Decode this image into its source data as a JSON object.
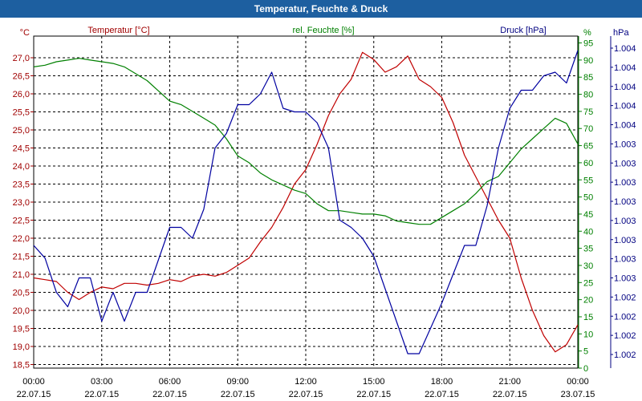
{
  "title": "Temperatur, Feuchte & Druck",
  "chart_data": {
    "type": "line",
    "x_ticks": [
      {
        "time": "00:00",
        "date": "22.07.15"
      },
      {
        "time": "03:00",
        "date": "22.07.15"
      },
      {
        "time": "06:00",
        "date": "22.07.15"
      },
      {
        "time": "09:00",
        "date": "22.07.15"
      },
      {
        "time": "12:00",
        "date": "22.07.15"
      },
      {
        "time": "15:00",
        "date": "22.07.15"
      },
      {
        "time": "18:00",
        "date": "22.07.15"
      },
      {
        "time": "21:00",
        "date": "22.07.15"
      },
      {
        "time": "00:00",
        "date": "23.07.15"
      }
    ],
    "xlim_hours": [
      0,
      24
    ],
    "grid": true,
    "axes": {
      "temperature": {
        "label": "Temperatur [°C]",
        "unit": "°C",
        "color": "#a00000",
        "ylim": [
          18.4,
          27.6
        ],
        "ticks": [
          "27,0",
          "26,5",
          "26,0",
          "25,5",
          "25,0",
          "24,5",
          "24,0",
          "23,5",
          "23,0",
          "22,5",
          "22,0",
          "21,5",
          "21,0",
          "20,5",
          "20,0",
          "19,5",
          "19,0",
          "18,5"
        ]
      },
      "humidity": {
        "label": "rel. Feuchte [%]",
        "unit": "%",
        "color": "#008000",
        "ylim": [
          0,
          97
        ],
        "ticks": [
          "95",
          "90",
          "85",
          "80",
          "75",
          "70",
          "65",
          "60",
          "55",
          "50",
          "45",
          "40",
          "35",
          "30",
          "25",
          "20",
          "15",
          "10",
          "5",
          "0"
        ]
      },
      "pressure": {
        "label": "Druck [hPa]",
        "unit": "hPa",
        "color": "#000080",
        "ylim": [
          18.4,
          27.6
        ],
        "ticks": [
          "1.004",
          "1.004",
          "1.004",
          "1.004",
          "1.004",
          "1.003",
          "1.003",
          "1.003",
          "1.003",
          "1.003",
          "1.003",
          "1.003",
          "1.003",
          "1.002",
          "1.002",
          "1.002",
          "1.002"
        ]
      }
    },
    "series": [
      {
        "name": "Temperatur [°C]",
        "axis": "temperature",
        "color": "#c00000",
        "points": [
          [
            0,
            20.9
          ],
          [
            0.5,
            20.85
          ],
          [
            1,
            20.8
          ],
          [
            1.5,
            20.5
          ],
          [
            2,
            20.3
          ],
          [
            2.5,
            20.5
          ],
          [
            3,
            20.65
          ],
          [
            3.5,
            20.6
          ],
          [
            4,
            20.75
          ],
          [
            4.5,
            20.75
          ],
          [
            5,
            20.7
          ],
          [
            5.5,
            20.75
          ],
          [
            6,
            20.85
          ],
          [
            6.5,
            20.8
          ],
          [
            7,
            20.95
          ],
          [
            7.5,
            21.0
          ],
          [
            8,
            20.95
          ],
          [
            8.5,
            21.05
          ],
          [
            9,
            21.25
          ],
          [
            9.5,
            21.45
          ],
          [
            10,
            21.9
          ],
          [
            10.5,
            22.3
          ],
          [
            11,
            22.85
          ],
          [
            11.5,
            23.5
          ],
          [
            12,
            23.9
          ],
          [
            12.5,
            24.6
          ],
          [
            13,
            25.4
          ],
          [
            13.5,
            26.0
          ],
          [
            14,
            26.4
          ],
          [
            14.5,
            27.15
          ],
          [
            15,
            26.95
          ],
          [
            15.5,
            26.6
          ],
          [
            16,
            26.75
          ],
          [
            16.5,
            27.05
          ],
          [
            17,
            26.4
          ],
          [
            17.5,
            26.2
          ],
          [
            18,
            25.9
          ],
          [
            18.5,
            25.2
          ],
          [
            19,
            24.3
          ],
          [
            19.5,
            23.7
          ],
          [
            20,
            23.1
          ],
          [
            20.5,
            22.5
          ],
          [
            21,
            22.0
          ],
          [
            21.5,
            20.9
          ],
          [
            22,
            20.0
          ],
          [
            22.5,
            19.3
          ],
          [
            23,
            18.85
          ],
          [
            23.5,
            19.05
          ],
          [
            24,
            19.6
          ]
        ]
      },
      {
        "name": "rel. Feuchte [%]",
        "axis": "humidity",
        "color": "#008000",
        "points": [
          [
            0,
            88
          ],
          [
            0.5,
            88.5
          ],
          [
            1,
            89.5
          ],
          [
            1.5,
            90
          ],
          [
            2,
            90.5
          ],
          [
            2.5,
            90
          ],
          [
            3,
            89.5
          ],
          [
            3.5,
            89
          ],
          [
            4,
            88
          ],
          [
            4.5,
            86
          ],
          [
            5,
            84
          ],
          [
            5.5,
            81
          ],
          [
            6,
            78
          ],
          [
            6.5,
            77
          ],
          [
            7,
            75
          ],
          [
            7.5,
            73
          ],
          [
            8,
            71
          ],
          [
            8.5,
            67
          ],
          [
            9,
            62
          ],
          [
            9.5,
            60
          ],
          [
            10,
            57
          ],
          [
            10.5,
            55
          ],
          [
            11,
            53.5
          ],
          [
            11.5,
            52
          ],
          [
            12,
            51
          ],
          [
            12.5,
            48
          ],
          [
            13,
            46
          ],
          [
            13.5,
            46
          ],
          [
            14,
            45.5
          ],
          [
            14.5,
            45
          ],
          [
            15,
            45
          ],
          [
            15.5,
            44.5
          ],
          [
            16,
            43
          ],
          [
            16.5,
            42.5
          ],
          [
            17,
            42
          ],
          [
            17.5,
            42
          ],
          [
            18,
            44
          ],
          [
            18.5,
            46
          ],
          [
            19,
            48
          ],
          [
            19.5,
            51
          ],
          [
            20,
            54.5
          ],
          [
            20.5,
            56
          ],
          [
            21,
            60
          ],
          [
            21.5,
            64
          ],
          [
            22,
            67
          ],
          [
            22.5,
            70
          ],
          [
            23,
            73
          ],
          [
            23.5,
            71.5
          ],
          [
            24,
            65.5
          ]
        ]
      },
      {
        "name": "Druck [hPa]",
        "axis": "pressure",
        "color": "#0000a0",
        "points": [
          [
            0,
            21.8
          ],
          [
            0.5,
            21.45
          ],
          [
            1,
            20.5
          ],
          [
            1.5,
            20.1
          ],
          [
            2,
            20.9
          ],
          [
            2.5,
            20.9
          ],
          [
            3,
            19.7
          ],
          [
            3.5,
            20.5
          ],
          [
            4,
            19.7
          ],
          [
            4.5,
            20.5
          ],
          [
            5,
            20.5
          ],
          [
            5.5,
            21.4
          ],
          [
            6,
            22.3
          ],
          [
            6.5,
            22.3
          ],
          [
            7,
            22.0
          ],
          [
            7.5,
            22.8
          ],
          [
            8,
            24.5
          ],
          [
            8.5,
            24.9
          ],
          [
            9,
            25.7
          ],
          [
            9.5,
            25.7
          ],
          [
            10,
            26.0
          ],
          [
            10.5,
            26.6
          ],
          [
            11,
            25.6
          ],
          [
            11.5,
            25.5
          ],
          [
            12,
            25.5
          ],
          [
            12.5,
            25.2
          ],
          [
            13,
            24.5
          ],
          [
            13.5,
            22.5
          ],
          [
            14,
            22.3
          ],
          [
            14.5,
            22.0
          ],
          [
            15,
            21.5
          ],
          [
            15.5,
            20.6
          ],
          [
            16,
            19.7
          ],
          [
            16.5,
            18.8
          ],
          [
            17,
            18.8
          ],
          [
            17.5,
            19.5
          ],
          [
            18,
            20.2
          ],
          [
            18.5,
            21.0
          ],
          [
            19,
            21.8
          ],
          [
            19.5,
            21.8
          ],
          [
            20,
            22.9
          ],
          [
            20.5,
            24.5
          ],
          [
            21,
            25.6
          ],
          [
            21.5,
            26.1
          ],
          [
            22,
            26.1
          ],
          [
            22.5,
            26.5
          ],
          [
            23,
            26.6
          ],
          [
            23.5,
            26.3
          ],
          [
            24,
            27.2
          ]
        ]
      }
    ]
  }
}
